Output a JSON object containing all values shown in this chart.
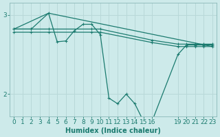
{
  "bg_color": "#cdeaea",
  "line_color": "#1a7a6e",
  "grid_color": "#b8d8d8",
  "xlabel": "Humidex (Indice chaleur)",
  "xlabel_fontsize": 7,
  "tick_fontsize": 6.5,
  "xlim": [
    -0.5,
    23.5
  ],
  "ylim": [
    1.72,
    3.15
  ],
  "yticks": [
    2,
    3
  ],
  "xticks": [
    0,
    1,
    2,
    3,
    4,
    5,
    6,
    7,
    8,
    9,
    10,
    11,
    12,
    13,
    14,
    15,
    16,
    19,
    20,
    21,
    22,
    23
  ],
  "series_trend": {
    "x": [
      0,
      4,
      23
    ],
    "y": [
      2.82,
      3.02,
      2.6
    ]
  },
  "series_flat1": {
    "x": [
      0,
      2,
      4,
      9,
      10,
      16,
      19,
      20,
      21,
      22,
      23
    ],
    "y": [
      2.82,
      2.82,
      2.82,
      2.82,
      2.82,
      2.68,
      2.63,
      2.63,
      2.63,
      2.63,
      2.63
    ]
  },
  "series_flat2": {
    "x": [
      0,
      2,
      4,
      9,
      10,
      16,
      19,
      20,
      21,
      22,
      23
    ],
    "y": [
      2.78,
      2.78,
      2.78,
      2.78,
      2.78,
      2.65,
      2.6,
      2.6,
      2.6,
      2.6,
      2.6
    ]
  },
  "series_zigzag": {
    "x": [
      0,
      2,
      4,
      5,
      6,
      7,
      8,
      9,
      10,
      11,
      12,
      13,
      14,
      15,
      16,
      19,
      20,
      21,
      22,
      23
    ],
    "y": [
      2.82,
      2.82,
      3.02,
      2.66,
      2.67,
      2.8,
      2.88,
      2.88,
      2.75,
      1.95,
      1.88,
      2.0,
      1.88,
      1.66,
      1.66,
      2.5,
      2.62,
      2.62,
      2.62,
      2.62
    ]
  }
}
